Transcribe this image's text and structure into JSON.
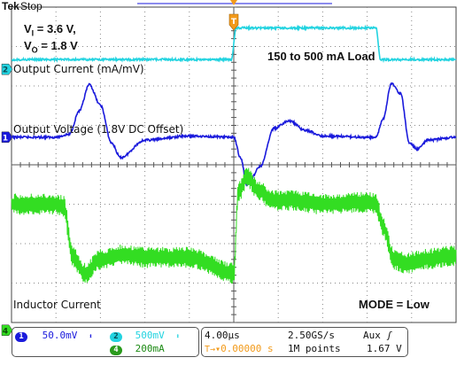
{
  "scope": {
    "brand": "Tek",
    "state": "Stop"
  },
  "conditions": {
    "vi": "V",
    "vi_sub": "I",
    "vi_val": " = 3.6 V,",
    "vo": "V",
    "vo_sub": "O",
    "vo_val": " = 1.8 V"
  },
  "annotations": {
    "load": "150 to 500 mA Load",
    "mode": "MODE = Low"
  },
  "channels": {
    "ch1_label": "Output Voltage (1.8V DC Offset)",
    "ch2_label": "Output Current (mA/mV)",
    "ch4_label": "Inductor Current",
    "ch1_num": "1",
    "ch2_num": "2",
    "ch4_num": "4"
  },
  "status": {
    "ch1_scale": "50.0mV",
    "ch2_scale": "500mV",
    "ch4_scale": "200mA",
    "timebase": "4.00µs",
    "sample_rate": "2.50GS/s",
    "trigger_source": "Aux",
    "trigger_pos": "0.00000 s",
    "record_length": "1M points",
    "trigger_level": "1.67 V"
  },
  "colors": {
    "ch1": "#1a1adc",
    "ch2": "#22d3e0",
    "ch4": "#33dd22",
    "trigger": "#f29a1a",
    "grid": "#888888"
  },
  "chart_data": {
    "type": "line",
    "title": "",
    "xlabel": "",
    "ylabel": "",
    "x_unit": "µs",
    "x_range": [
      -20,
      20
    ],
    "x_divisions": 10,
    "y_divisions": 8,
    "time_per_div_us": 4,
    "series": [
      {
        "name": "Output Current (mA/mV)",
        "channel": 2,
        "scale": "500mV/div",
        "x": [
          -20,
          -0.2,
          0.2,
          12.8,
          13.2,
          20
        ],
        "y": [
          150,
          150,
          500,
          500,
          150,
          150
        ]
      },
      {
        "name": "Output Voltage (1.8V DC Offset)",
        "channel": 1,
        "scale": "50.0mV/div",
        "x": [
          -20,
          -16,
          -14.8,
          -13.9,
          -13.0,
          -12.0,
          -11.0,
          -10.2,
          -8,
          -4,
          0,
          0.6,
          1.2,
          2.4,
          3.6,
          5.0,
          6.4,
          8,
          12,
          12.8,
          13.4,
          14.2,
          15.0,
          15.8,
          16.5,
          17.5,
          20
        ],
        "y": [
          0,
          0,
          5,
          45,
          90,
          55,
          -10,
          -35,
          -5,
          2,
          0,
          -35,
          -82,
          -50,
          15,
          28,
          12,
          2,
          0,
          0,
          30,
          92,
          75,
          -10,
          -20,
          -5,
          0
        ]
      },
      {
        "name": "Inductor Current",
        "channel": 4,
        "scale": "200mA/div",
        "x": [
          -20,
          -16,
          -15.3,
          -14.5,
          -13.4,
          -12,
          -10,
          -8,
          -4,
          0,
          0.4,
          1.2,
          2.2,
          3.5,
          5,
          8,
          12,
          12.8,
          13.4,
          14.4,
          15.5,
          17,
          20
        ],
        "y": [
          500,
          500,
          490,
          230,
          150,
          220,
          245,
          230,
          230,
          150,
          560,
          640,
          570,
          520,
          520,
          500,
          510,
          500,
          390,
          220,
          200,
          220,
          240
        ]
      }
    ]
  }
}
